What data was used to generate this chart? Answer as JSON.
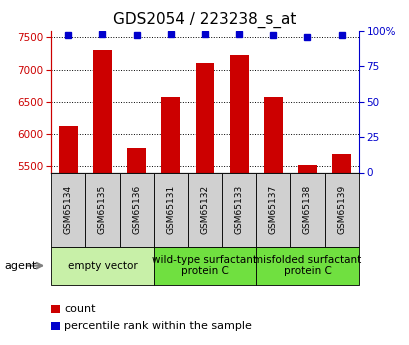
{
  "title": "GDS2054 / 223238_s_at",
  "samples": [
    "GSM65134",
    "GSM65135",
    "GSM65136",
    "GSM65131",
    "GSM65132",
    "GSM65133",
    "GSM65137",
    "GSM65138",
    "GSM65139"
  ],
  "counts": [
    6130,
    7300,
    5780,
    6580,
    7100,
    7220,
    6580,
    5510,
    5680
  ],
  "percentile_ranks": [
    97,
    98,
    97,
    98,
    98,
    98,
    97,
    96,
    97
  ],
  "ylim_left": [
    5400,
    7600
  ],
  "ylim_right": [
    0,
    100
  ],
  "yticks_left": [
    5500,
    6000,
    6500,
    7000,
    7500
  ],
  "yticks_right": [
    0,
    25,
    50,
    75,
    100
  ],
  "groups": [
    {
      "label": "empty vector",
      "start": 0,
      "end": 3,
      "color": "#c8f0a8"
    },
    {
      "label": "wild-type surfactant\nprotein C",
      "start": 3,
      "end": 6,
      "color": "#70e040"
    },
    {
      "label": "misfolded surfactant\nprotein C",
      "start": 6,
      "end": 9,
      "color": "#70e040"
    }
  ],
  "bar_color": "#cc0000",
  "dot_color": "#0000cc",
  "bar_width": 0.55,
  "left_axis_color": "#cc0000",
  "right_axis_color": "#0000cc",
  "sample_box_color": "#d0d0d0",
  "agent_label": "agent",
  "legend_count_label": "count",
  "legend_pct_label": "percentile rank within the sample",
  "title_fontsize": 11,
  "tick_fontsize": 7.5,
  "sample_fontsize": 6.5,
  "group_fontsize": 7.5,
  "legend_fontsize": 8
}
